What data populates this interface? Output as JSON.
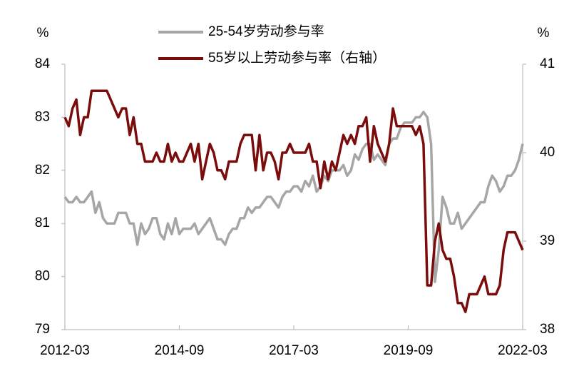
{
  "chart_data": {
    "type": "line",
    "y_unit": "%",
    "y2_unit": "%",
    "categories": [
      "2012-03",
      null,
      null,
      null,
      null,
      null,
      null,
      null,
      null,
      null,
      null,
      null,
      null,
      null,
      null,
      null,
      null,
      null,
      null,
      null,
      null,
      null,
      null,
      null,
      null,
      null,
      null,
      null,
      null,
      null,
      "2014-09",
      null,
      null,
      null,
      null,
      null,
      null,
      null,
      null,
      null,
      null,
      null,
      null,
      null,
      null,
      null,
      null,
      null,
      null,
      null,
      null,
      null,
      null,
      null,
      null,
      null,
      null,
      null,
      null,
      null,
      "2017-03",
      null,
      null,
      null,
      null,
      null,
      null,
      null,
      null,
      null,
      null,
      null,
      null,
      null,
      null,
      null,
      null,
      null,
      null,
      null,
      null,
      null,
      null,
      null,
      null,
      null,
      null,
      null,
      null,
      null,
      "2019-09",
      null,
      null,
      null,
      null,
      null,
      null,
      null,
      null,
      null,
      null,
      null,
      null,
      null,
      null,
      null,
      null,
      null,
      null,
      null,
      null,
      null,
      null,
      null,
      null,
      null,
      null,
      null,
      null,
      null,
      "2022-03"
    ],
    "series": [
      {
        "name": "25-54岁劳动参与率",
        "color": "#a6a6a6",
        "axis": "y",
        "values": [
          81.5,
          81.4,
          81.4,
          81.5,
          81.4,
          81.4,
          81.5,
          81.6,
          81.2,
          81.4,
          81.1,
          81.0,
          81.0,
          81.0,
          81.2,
          81.2,
          81.2,
          81.0,
          81.0,
          80.6,
          81.0,
          80.8,
          80.9,
          81.1,
          81.1,
          80.8,
          80.7,
          81.0,
          80.8,
          81.1,
          80.8,
          80.9,
          80.9,
          80.9,
          81.0,
          80.8,
          80.9,
          81.0,
          81.1,
          80.9,
          80.7,
          80.7,
          80.6,
          80.8,
          80.9,
          80.9,
          81.1,
          81.1,
          81.3,
          81.2,
          81.3,
          81.3,
          81.4,
          81.5,
          81.5,
          81.4,
          81.3,
          81.5,
          81.6,
          81.6,
          81.7,
          81.7,
          81.6,
          81.8,
          81.7,
          81.9,
          81.6,
          81.7,
          81.9,
          81.8,
          82.0,
          82.0,
          82.0,
          82.1,
          81.9,
          82.0,
          82.3,
          82.2,
          82.4,
          82.5,
          82.5,
          82.2,
          82.3,
          82.2,
          82.1,
          82.5,
          82.6,
          82.6,
          82.8,
          82.9,
          82.9,
          82.9,
          83.0,
          83.0,
          83.1,
          83.0,
          82.5,
          79.9,
          80.5,
          81.5,
          81.3,
          81.0,
          81.0,
          81.2,
          80.9,
          81.0,
          81.1,
          81.2,
          81.3,
          81.4,
          81.4,
          81.7,
          81.9,
          81.8,
          81.6,
          81.7,
          81.9,
          81.9,
          82.0,
          82.2,
          82.5
        ]
      },
      {
        "name": "55岁以上劳动参与率（右轴）",
        "color": "#7b0c0c",
        "axis": "y2",
        "values": [
          40.4,
          40.3,
          40.5,
          40.6,
          40.2,
          40.4,
          40.4,
          40.7,
          40.7,
          40.7,
          40.7,
          40.7,
          40.6,
          40.5,
          40.4,
          40.5,
          40.5,
          40.2,
          40.4,
          40.1,
          40.1,
          39.9,
          39.9,
          39.9,
          40.0,
          39.9,
          39.9,
          40.1,
          39.9,
          40.0,
          39.9,
          39.9,
          40.0,
          40.1,
          39.9,
          40.1,
          39.7,
          39.9,
          40.1,
          40.0,
          39.8,
          39.8,
          39.7,
          39.9,
          39.9,
          39.9,
          40.1,
          40.2,
          40.2,
          40.2,
          39.8,
          40.2,
          39.8,
          40.0,
          40.0,
          39.9,
          39.7,
          40.0,
          40.0,
          40.1,
          40.0,
          40.0,
          40.0,
          40.0,
          40.1,
          39.9,
          39.9,
          39.6,
          39.9,
          39.7,
          39.9,
          39.8,
          40.0,
          40.2,
          40.1,
          40.2,
          40.1,
          40.3,
          40.3,
          40.4,
          39.9,
          40.3,
          40.1,
          40.0,
          39.9,
          40.1,
          40.5,
          40.3,
          40.3,
          40.3,
          40.3,
          40.3,
          40.2,
          40.3,
          40.1,
          38.5,
          38.5,
          39.0,
          39.2,
          38.9,
          38.8,
          38.8,
          38.6,
          38.3,
          38.3,
          38.2,
          38.4,
          38.4,
          38.4,
          38.5,
          38.6,
          38.4,
          38.4,
          38.4,
          38.5,
          38.9,
          39.1,
          39.1,
          39.1,
          39.0,
          38.9
        ]
      }
    ],
    "ylim": [
      79,
      84
    ],
    "yticks": [
      79,
      80,
      81,
      82,
      83,
      84
    ],
    "y2lim": [
      38,
      41
    ],
    "y2ticks": [
      38,
      39,
      40,
      41
    ],
    "grid": false,
    "legend": "top"
  }
}
